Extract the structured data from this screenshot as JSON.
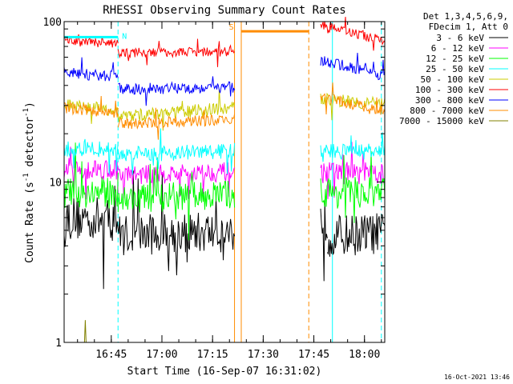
{
  "chart_data": {
    "type": "line",
    "title": "RHESSI Observing Summary Count Rates",
    "xlabel": "Start Time (16-Sep-07 16:31:02)",
    "ylabel_parts": [
      "Count Rate (s",
      "-1",
      " detector",
      "-1",
      ")"
    ],
    "yscale": "log",
    "ylim": [
      1,
      100
    ],
    "xlim": [
      "16:31:02",
      "18:06:00"
    ],
    "x_ticks": [
      "16:45",
      "17:00",
      "17:15",
      "17:30",
      "17:45",
      "18:00"
    ],
    "y_ticks": [
      "1",
      "10",
      "100"
    ],
    "legend_header": [
      "Det 1,3,4,5,6,9,",
      "FDecim 1, Att 0"
    ],
    "legend_position": "right",
    "timestamp": "16-Oct-2021 13:46",
    "gaps": [
      [
        "17:21:30",
        "17:47:00"
      ]
    ],
    "series": [
      {
        "name": "3 - 6 keV",
        "color": "#000000",
        "segments": [
          {
            "t0": "16:31:02",
            "t1": "16:47:00",
            "start": 6.0,
            "end": 5.8,
            "noise": 0.14
          },
          {
            "t0": "16:47:00",
            "t1": "17:21:30",
            "start": 4.7,
            "end": 4.9,
            "noise": 0.13
          },
          {
            "t0": "17:47:00",
            "t1": "17:49:00",
            "start": 5.8,
            "end": 5.6,
            "noise": 0.14
          },
          {
            "t0": "17:49:00",
            "t1": "18:06:00",
            "start": 4.6,
            "end": 4.8,
            "noise": 0.13
          }
        ]
      },
      {
        "name": "6 - 12 keV",
        "color": "#ff00ff",
        "segments": [
          {
            "t0": "16:31:02",
            "t1": "16:47:00",
            "start": 12.2,
            "end": 12.0,
            "noise": 0.07
          },
          {
            "t0": "16:47:00",
            "t1": "17:21:30",
            "start": 11.0,
            "end": 11.6,
            "noise": 0.06
          },
          {
            "t0": "17:47:00",
            "t1": "18:06:00",
            "start": 11.5,
            "end": 11.2,
            "noise": 0.07
          }
        ]
      },
      {
        "name": "12 - 25 keV",
        "color": "#00ff00",
        "segments": [
          {
            "t0": "16:31:02",
            "t1": "16:47:00",
            "start": 8.5,
            "end": 8.6,
            "noise": 0.1
          },
          {
            "t0": "16:47:00",
            "t1": "17:21:30",
            "start": 7.8,
            "end": 8.4,
            "noise": 0.09
          },
          {
            "t0": "17:47:00",
            "t1": "18:06:00",
            "start": 8.6,
            "end": 8.5,
            "noise": 0.1
          }
        ]
      },
      {
        "name": "25 - 50 keV",
        "color": "#00ffff",
        "segments": [
          {
            "t0": "16:31:02",
            "t1": "16:47:00",
            "start": 16.0,
            "end": 16.0,
            "noise": 0.05
          },
          {
            "t0": "16:47:00",
            "t1": "17:21:30",
            "start": 14.8,
            "end": 15.6,
            "noise": 0.05
          },
          {
            "t0": "17:47:00",
            "t1": "18:06:00",
            "start": 15.6,
            "end": 15.4,
            "noise": 0.05
          }
        ]
      },
      {
        "name": "50 - 100 keV",
        "color": "#cccc00",
        "segments": [
          {
            "t0": "16:31:02",
            "t1": "16:47:00",
            "start": 30.0,
            "end": 28.0,
            "noise": 0.04
          },
          {
            "t0": "16:47:00",
            "t1": "17:21:30",
            "start": 25.5,
            "end": 29.0,
            "noise": 0.04
          },
          {
            "t0": "17:47:00",
            "t1": "18:06:00",
            "start": 33.0,
            "end": 30.5,
            "noise": 0.04
          }
        ]
      },
      {
        "name": "100 - 300 keV",
        "color": "#ff0000",
        "segments": [
          {
            "t0": "16:31:02",
            "t1": "16:47:00",
            "start": 76.0,
            "end": 72.0,
            "noise": 0.03
          },
          {
            "t0": "16:47:00",
            "t1": "17:21:30",
            "start": 64.0,
            "end": 65.0,
            "noise": 0.03
          },
          {
            "t0": "17:47:00",
            "t1": "18:06:00",
            "start": 96.0,
            "end": 75.0,
            "noise": 0.03
          }
        ]
      },
      {
        "name": "300 - 800 keV",
        "color": "#0000ff",
        "segments": [
          {
            "t0": "16:31:02",
            "t1": "16:47:00",
            "start": 48.0,
            "end": 45.0,
            "noise": 0.035
          },
          {
            "t0": "16:47:00",
            "t1": "17:21:30",
            "start": 38.0,
            "end": 39.0,
            "noise": 0.035
          },
          {
            "t0": "17:47:00",
            "t1": "18:06:00",
            "start": 57.0,
            "end": 46.0,
            "noise": 0.035
          }
        ]
      },
      {
        "name": "800 - 7000 keV",
        "color": "#ff8c00",
        "segments": [
          {
            "t0": "16:31:02",
            "t1": "16:47:00",
            "start": 29.0,
            "end": 27.0,
            "noise": 0.035
          },
          {
            "t0": "16:47:00",
            "t1": "17:21:30",
            "start": 23.0,
            "end": 24.5,
            "noise": 0.035
          },
          {
            "t0": "17:47:00",
            "t1": "18:06:00",
            "start": 34.0,
            "end": 27.0,
            "noise": 0.035
          }
        ]
      },
      {
        "name": "7000 - 15000 keV",
        "color": "#808000",
        "segments": [
          {
            "t0": "16:34:00",
            "t1": "16:38:00",
            "start": 1.0,
            "end": 1.0,
            "noise": 0.0,
            "spikes": 1.95
          }
        ]
      }
    ],
    "flags": [
      {
        "label": "N",
        "color": "#00ffff",
        "t0": "16:31:02",
        "t1": "16:47:00",
        "y": 80,
        "label_at": "16:47:00"
      },
      {
        "label": "S",
        "color": "#ff8c00",
        "t0": "17:23:30",
        "t1": "17:43:30",
        "y": 87,
        "label_at": "17:21:30"
      }
    ],
    "markers": [
      {
        "t": "16:31:02",
        "color": "#00ffff",
        "style": "solid"
      },
      {
        "t": "16:47:00",
        "color": "#00ffff",
        "style": "dashed"
      },
      {
        "t": "17:21:30",
        "color": "#ff8c00",
        "style": "solid"
      },
      {
        "t": "17:23:30",
        "color": "#ff8c00",
        "style": "solid"
      },
      {
        "t": "17:43:30",
        "color": "#ff8c00",
        "style": "dashed"
      },
      {
        "t": "17:50:30",
        "color": "#00ffff",
        "style": "solid"
      },
      {
        "t": "18:05:00",
        "color": "#00ffff",
        "style": "dashed"
      }
    ]
  }
}
